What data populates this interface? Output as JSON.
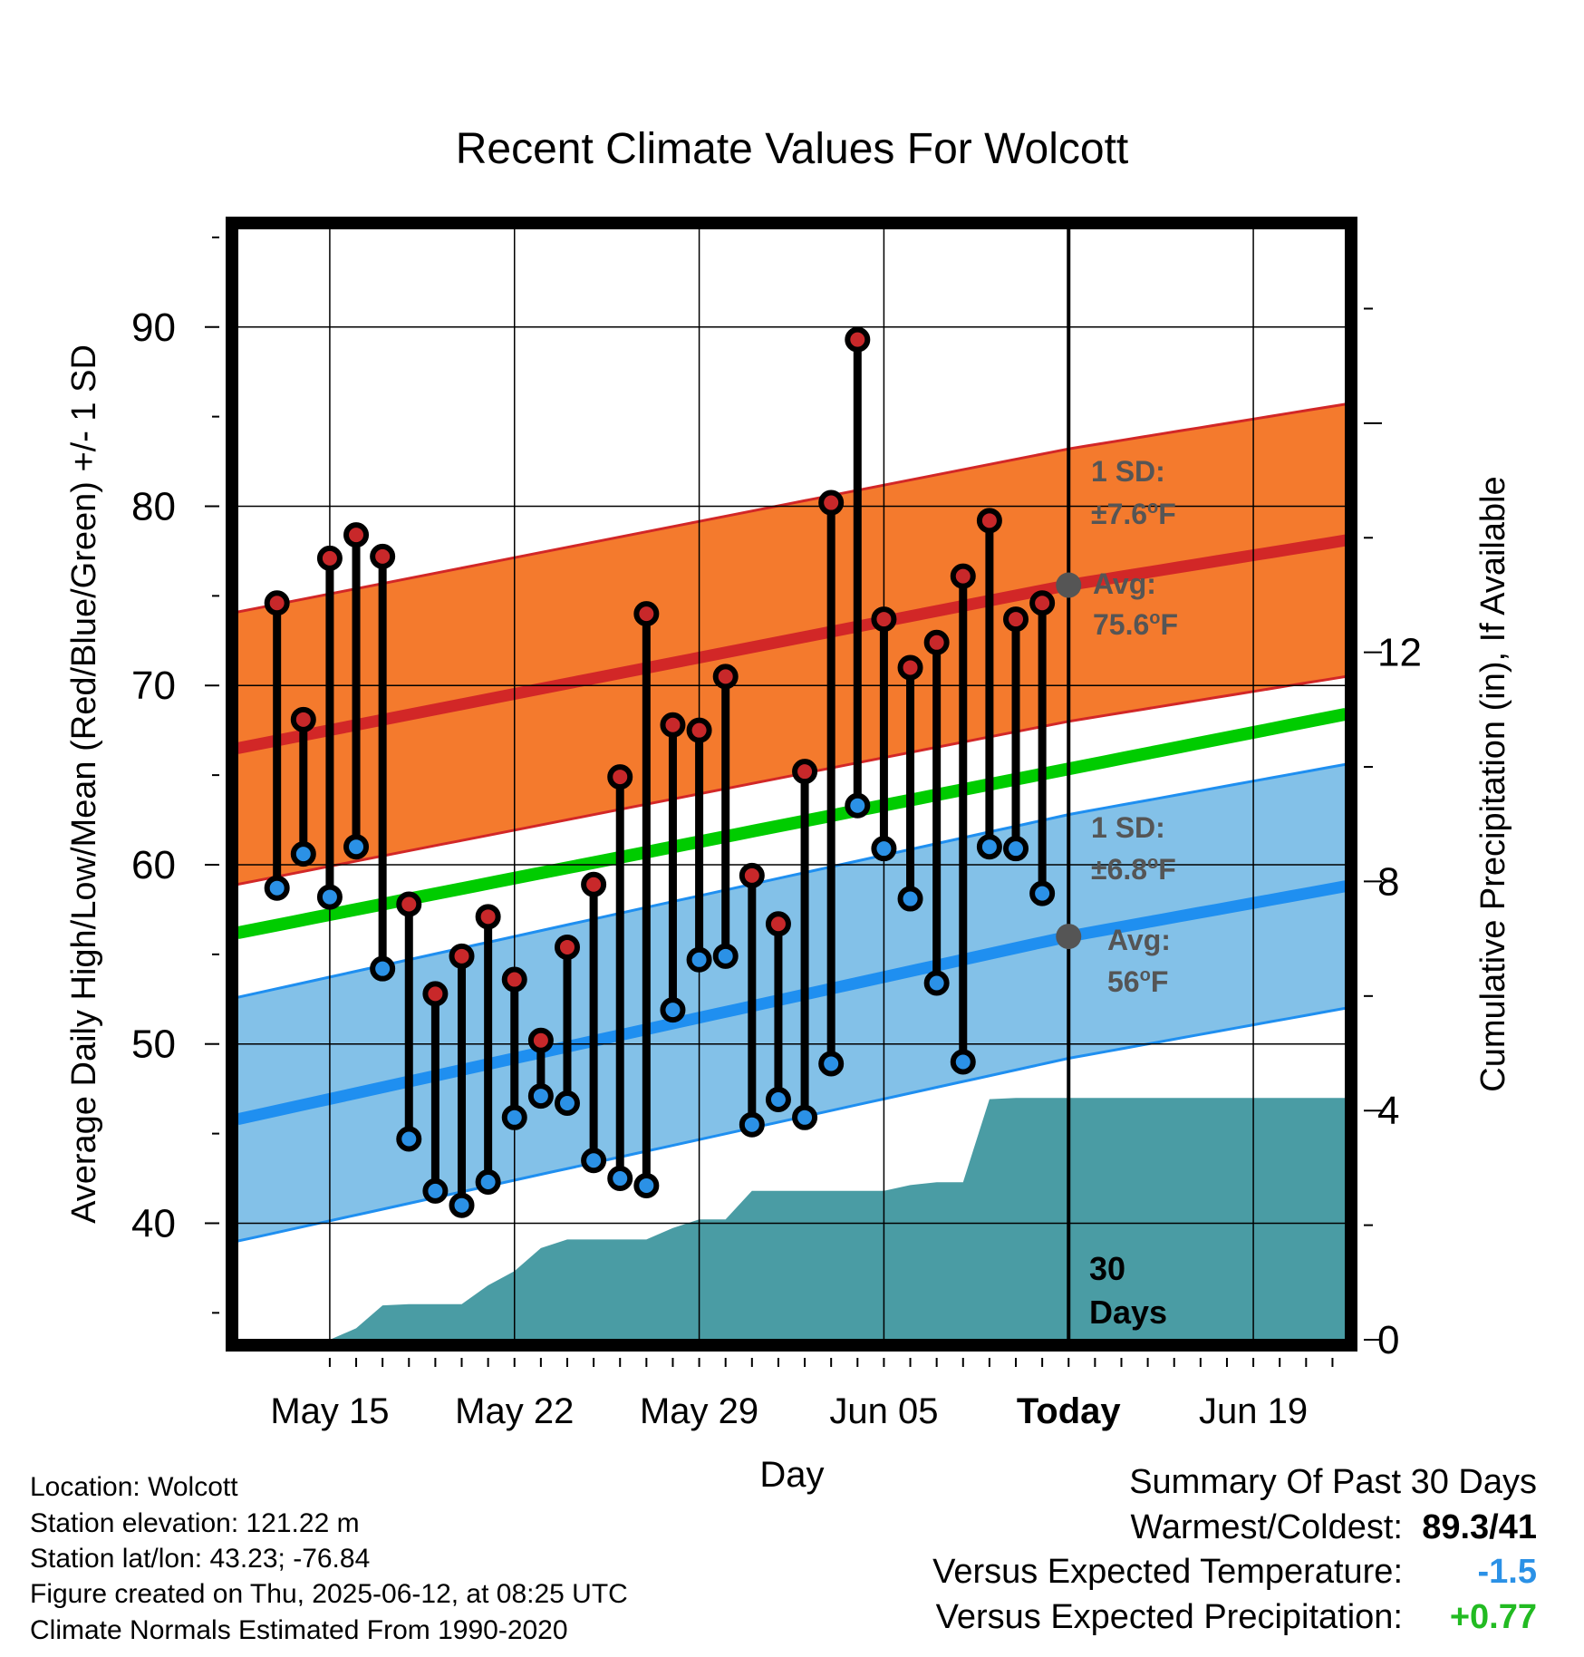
{
  "chart_data": {
    "type": "line",
    "title": "Recent Climate Values For Wolcott",
    "xlabel": "Day",
    "ylabel": "Average Daily High/Low/Mean (Red/Blue/Green) +/- 1 SD",
    "y2label": "Cumulative Precipitation (in), If Available",
    "ylim": [
      33.5,
      95.5
    ],
    "y2lim": [
      0,
      19.4
    ],
    "xlim": [
      "2025-05-11 12:00",
      "2025-06-22 12:00"
    ],
    "yticks": [
      "40",
      "50",
      "60",
      "70",
      "80",
      "90"
    ],
    "y2ticks": [
      "0",
      "4",
      "8",
      "12"
    ],
    "xticks": [
      "May 15",
      "May 22",
      "May 29",
      "Jun 05",
      "Today",
      "Jun 19"
    ],
    "xtick_dates": [
      "2025-05-15",
      "2025-05-22",
      "2025-05-29",
      "2025-06-05",
      "2025-06-12",
      "2025-06-19"
    ],
    "grid": true,
    "today": "2025-06-12",
    "today_label": "30 Days",
    "dates": [
      "2025-05-13",
      "2025-05-14",
      "2025-05-15",
      "2025-05-16",
      "2025-05-17",
      "2025-05-18",
      "2025-05-19",
      "2025-05-20",
      "2025-05-21",
      "2025-05-22",
      "2025-05-23",
      "2025-05-24",
      "2025-05-25",
      "2025-05-26",
      "2025-05-27",
      "2025-05-28",
      "2025-05-29",
      "2025-05-30",
      "2025-05-31",
      "2025-06-01",
      "2025-06-02",
      "2025-06-03",
      "2025-06-04",
      "2025-06-05",
      "2025-06-06",
      "2025-06-07",
      "2025-06-08",
      "2025-06-09",
      "2025-06-10",
      "2025-06-11"
    ],
    "daily_high": [
      74.6,
      68.1,
      77.1,
      78.4,
      77.2,
      57.8,
      52.8,
      54.9,
      57.1,
      53.6,
      50.2,
      55.4,
      58.9,
      64.9,
      74.0,
      67.8,
      67.5,
      70.5,
      59.4,
      56.7,
      65.2,
      80.2,
      89.3,
      73.7,
      71.0,
      72.4,
      76.1,
      79.2,
      73.7,
      74.6
    ],
    "daily_low": [
      58.7,
      60.6,
      58.2,
      61.0,
      54.2,
      44.7,
      41.8,
      41.0,
      42.3,
      45.9,
      47.1,
      46.7,
      43.5,
      42.5,
      42.1,
      51.9,
      54.7,
      54.9,
      45.5,
      46.9,
      45.9,
      48.9,
      63.3,
      60.9,
      58.1,
      53.4,
      49.0,
      61.0,
      60.9,
      58.4
    ],
    "normal_high": {
      "x": [
        "2025-05-11 12:00",
        "2025-06-12",
        "2025-06-22 12:00"
      ],
      "values": [
        66.5,
        75.6,
        78.1
      ],
      "sd": 7.6
    },
    "normal_low": {
      "x": [
        "2025-05-11 12:00",
        "2025-06-12",
        "2025-06-22 12:00"
      ],
      "values": [
        45.8,
        56.0,
        58.8
      ],
      "sd": 6.8
    },
    "normal_mean": {
      "x": [
        "2025-05-11 12:00",
        "2025-06-22 12:00"
      ],
      "values": [
        56.2,
        68.4
      ]
    },
    "precip_cumulative": {
      "x": [
        "2025-05-11 12:00",
        "2025-05-15",
        "2025-05-16",
        "2025-05-17",
        "2025-05-18",
        "2025-05-19",
        "2025-05-20",
        "2025-05-21",
        "2025-05-22",
        "2025-05-23",
        "2025-05-24",
        "2025-05-25",
        "2025-05-26",
        "2025-05-27",
        "2025-05-28",
        "2025-05-29",
        "2025-05-30",
        "2025-05-31",
        "2025-06-01",
        "2025-06-02",
        "2025-06-03",
        "2025-06-04",
        "2025-06-05",
        "2025-06-06",
        "2025-06-07",
        "2025-06-08",
        "2025-06-09",
        "2025-06-10",
        "2025-06-11",
        "2025-06-12",
        "2025-06-22 12:00"
      ],
      "values": [
        0,
        0,
        0.2,
        0.6,
        0.62,
        0.62,
        0.62,
        0.95,
        1.2,
        1.6,
        1.75,
        1.75,
        1.75,
        1.75,
        1.95,
        2.1,
        2.1,
        2.6,
        2.6,
        2.6,
        2.6,
        2.6,
        2.6,
        2.7,
        2.75,
        2.75,
        4.2,
        4.22,
        4.22,
        4.22,
        4.22
      ]
    },
    "annotations": {
      "high_sd_title": "1 SD:",
      "high_sd": "±7.6",
      "high_avg_title": "Avg:",
      "high_avg": "75.6",
      "low_sd_title": "1 SD:",
      "low_sd": "±6.8",
      "low_avg_title": "Avg:",
      "low_avg": "56",
      "unit_sup": "o",
      "unit": "F"
    },
    "colors": {
      "high_band": "#f47a2d",
      "high_line": "#d22727",
      "low_band": "#83c1e8",
      "low_line": "#1f8ff0",
      "mean_line": "#00cc00",
      "precip": "#4a9ca4",
      "high_dot": "#c8282a",
      "low_dot": "#2b91e6",
      "annotation": "#555555"
    }
  },
  "info": {
    "location": "Location: Wolcott",
    "elevation": "Station elevation: 121.22 m",
    "latlon": "Station lat/lon: 43.23; -76.84",
    "created": "Figure created on Thu, 2025-06-12, at 08:25 UTC",
    "normals": "Climate Normals Estimated From 1990-2020"
  },
  "summary": {
    "title": "Summary Of Past 30 Days",
    "warmest_label": "Warmest/Coldest:",
    "warmest_value": "89.3/41",
    "temp_label": "Versus Expected Temperature:",
    "temp_value": "-1.5",
    "temp_color": "#2b91e6",
    "precip_label": "Versus Expected Precipitation:",
    "precip_value": "+0.77",
    "precip_color": "#22bb22"
  }
}
